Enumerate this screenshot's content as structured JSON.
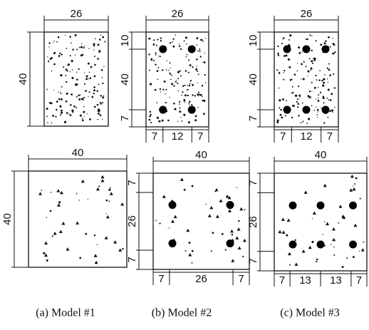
{
  "sections": [
    {
      "top": [
        "26"
      ],
      "left": [
        "40"
      ]
    },
    {
      "top": [
        "26"
      ],
      "left": [
        "10",
        "40",
        "7"
      ],
      "bottom": [
        "7",
        "12",
        "7"
      ]
    },
    {
      "top": [
        "26"
      ],
      "left": [
        "10",
        "40",
        "7"
      ],
      "bottom": [
        "7",
        "12",
        "7"
      ]
    },
    {
      "top": [
        "40"
      ],
      "left": [
        "40"
      ]
    },
    {
      "top": [
        "40"
      ],
      "left": [
        "7",
        "26",
        "7"
      ],
      "bottom": [
        "7",
        "26",
        "7"
      ]
    },
    {
      "top": [
        "40"
      ],
      "left": [
        "7",
        "26",
        "7"
      ],
      "bottom": [
        "7",
        "13",
        "13",
        "7"
      ]
    }
  ],
  "captions": [
    "(a) Model #1",
    "(b) Model #2",
    "(c) Model #3"
  ]
}
